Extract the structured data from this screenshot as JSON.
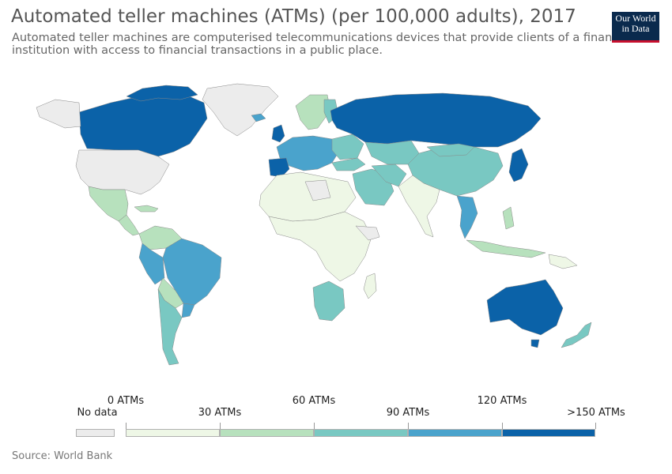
{
  "header": {
    "title": "Automated teller machines (ATMs) (per 100,000 adults), 2017",
    "subtitle": "Automated teller machines are computerised telecommunications devices that provide clients of a financial institution with access to financial transactions in a public place."
  },
  "logo": {
    "line1": "Our World",
    "line2": "in Data"
  },
  "legend": {
    "no_data_label": "No data",
    "no_data_color": "#ececec",
    "bins": [
      {
        "label": "0 ATMs",
        "color": "#eef7e6"
      },
      {
        "label": "30 ATMs",
        "color": "#b7e1bd"
      },
      {
        "label": "60 ATMs",
        "color": "#79c8c2"
      },
      {
        "label": "90 ATMs",
        "color": "#4aa3cc"
      },
      {
        "label": "120 ATMs",
        "color": "#0b62a8"
      }
    ],
    "max_label": ">150 ATMs"
  },
  "source": "Source: World Bank",
  "colors": {
    "no_data": "#ececec",
    "bin_0_30": "#eef7e6",
    "bin_30_60": "#b7e1bd",
    "bin_60_90": "#79c8c2",
    "bin_90_120": "#4aa3cc",
    "bin_120_150": "#0b62a8"
  }
}
